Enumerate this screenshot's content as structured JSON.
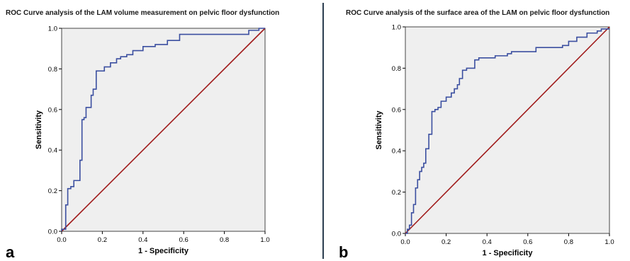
{
  "chart_data": [
    {
      "type": "line",
      "panel_label": "a",
      "title": "ROC Curve analysis of the LAM volume measurement on pelvic floor dysfunction",
      "xlabel": "1 - Specificity",
      "ylabel": "Sensitivity",
      "xlim": [
        0,
        1
      ],
      "ylim": [
        0,
        1
      ],
      "x_ticks": [
        "0.0",
        "0.2",
        "0.4",
        "0.6",
        "0.8",
        "1.0"
      ],
      "y_ticks": [
        "0.0",
        "0.2",
        "0.4",
        "0.6",
        "0.8",
        "1.0"
      ],
      "grid": false,
      "colors": {
        "roc": "#3b4fa0",
        "reference": "#a01b1b",
        "plot_bg": "#efefef"
      },
      "series": [
        {
          "x": [
            0.0,
            0.0,
            0.02,
            0.02,
            0.03,
            0.03,
            0.045,
            0.045,
            0.06,
            0.06,
            0.09,
            0.09,
            0.1,
            0.1,
            0.11,
            0.11,
            0.12,
            0.12,
            0.145,
            0.145,
            0.155,
            0.155,
            0.17,
            0.17,
            0.21,
            0.21,
            0.24,
            0.24,
            0.27,
            0.27,
            0.29,
            0.29,
            0.32,
            0.32,
            0.35,
            0.35,
            0.4,
            0.4,
            0.46,
            0.46,
            0.52,
            0.52,
            0.58,
            0.58,
            0.92,
            0.92,
            0.97,
            0.97,
            1.0
          ],
          "y": [
            0.0,
            0.01,
            0.01,
            0.13,
            0.13,
            0.21,
            0.21,
            0.22,
            0.22,
            0.25,
            0.25,
            0.35,
            0.35,
            0.55,
            0.55,
            0.56,
            0.56,
            0.61,
            0.61,
            0.67,
            0.67,
            0.7,
            0.7,
            0.79,
            0.79,
            0.81,
            0.81,
            0.83,
            0.83,
            0.85,
            0.85,
            0.86,
            0.86,
            0.87,
            0.87,
            0.89,
            0.89,
            0.91,
            0.91,
            0.92,
            0.92,
            0.94,
            0.94,
            0.97,
            0.97,
            0.99,
            0.99,
            1.0,
            1.0
          ]
        },
        {
          "x": [
            0,
            1
          ],
          "y": [
            0,
            1
          ]
        }
      ]
    },
    {
      "type": "line",
      "panel_label": "b",
      "title": "ROC Curve analysis of the surface area of the LAM on pelvic floor dysfunction",
      "xlabel": "1 - Specificity",
      "ylabel": "Sensitivity",
      "xlim": [
        0,
        1
      ],
      "ylim": [
        0,
        1
      ],
      "x_ticks": [
        "0.0",
        "0.2",
        "0.4",
        "0.6",
        "0.8",
        "1.0"
      ],
      "y_ticks": [
        "0.0",
        "0.2",
        "0.4",
        "0.6",
        "0.8",
        "1.0"
      ],
      "grid": false,
      "colors": {
        "roc": "#3b4fa0",
        "reference": "#a01b1b",
        "plot_bg": "#efefef"
      },
      "series": [
        {
          "x": [
            0.0,
            0.01,
            0.01,
            0.02,
            0.02,
            0.03,
            0.03,
            0.04,
            0.04,
            0.05,
            0.05,
            0.06,
            0.06,
            0.07,
            0.07,
            0.08,
            0.08,
            0.09,
            0.09,
            0.1,
            0.1,
            0.115,
            0.115,
            0.13,
            0.13,
            0.145,
            0.145,
            0.16,
            0.16,
            0.175,
            0.175,
            0.2,
            0.2,
            0.225,
            0.225,
            0.24,
            0.24,
            0.255,
            0.255,
            0.265,
            0.265,
            0.28,
            0.28,
            0.3,
            0.3,
            0.34,
            0.34,
            0.36,
            0.36,
            0.38,
            0.38,
            0.44,
            0.44,
            0.5,
            0.5,
            0.52,
            0.52,
            0.64,
            0.64,
            0.77,
            0.77,
            0.8,
            0.8,
            0.84,
            0.84,
            0.89,
            0.89,
            0.94,
            0.94,
            0.96,
            0.96,
            1.0
          ],
          "y": [
            0.0,
            0.0,
            0.02,
            0.02,
            0.04,
            0.04,
            0.1,
            0.1,
            0.14,
            0.14,
            0.22,
            0.22,
            0.26,
            0.26,
            0.3,
            0.3,
            0.32,
            0.32,
            0.34,
            0.34,
            0.41,
            0.41,
            0.48,
            0.48,
            0.59,
            0.59,
            0.6,
            0.6,
            0.61,
            0.61,
            0.64,
            0.64,
            0.66,
            0.66,
            0.68,
            0.68,
            0.7,
            0.7,
            0.72,
            0.72,
            0.75,
            0.75,
            0.79,
            0.79,
            0.8,
            0.8,
            0.84,
            0.84,
            0.85,
            0.85,
            0.85,
            0.85,
            0.86,
            0.86,
            0.87,
            0.87,
            0.88,
            0.88,
            0.9,
            0.9,
            0.91,
            0.91,
            0.93,
            0.93,
            0.95,
            0.95,
            0.97,
            0.97,
            0.98,
            0.98,
            0.99,
            0.99
          ]
        },
        {
          "x": [
            0,
            1
          ],
          "y": [
            0,
            1
          ]
        }
      ]
    }
  ]
}
